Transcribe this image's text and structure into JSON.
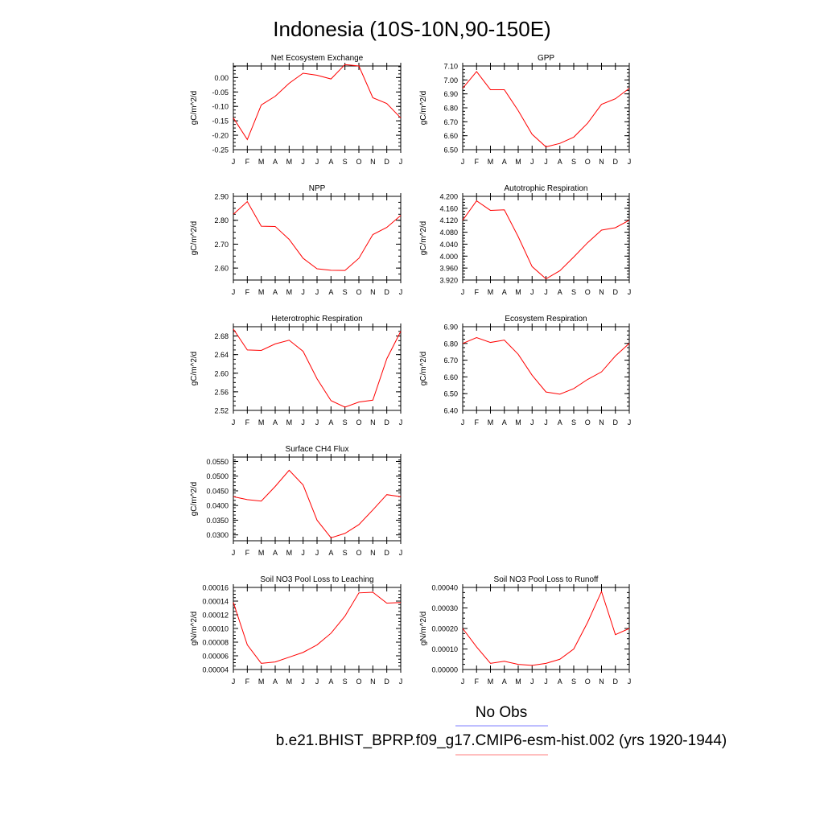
{
  "figure": {
    "title": "Indonesia (10S-10N,90-150E)",
    "legend": [
      {
        "label": "No Obs",
        "color": "#7f7fff"
      },
      {
        "label": "b.e21.BHIST_BPRP.f09_g17.CMIP6-esm-hist.002 (yrs 1920-1944)",
        "color": "#ff7f7f"
      }
    ]
  },
  "chart_data": [
    {
      "type": "line",
      "title": "Net Ecosystem Exchange",
      "ylabel": "gC/m^2/d",
      "categories": [
        "J",
        "F",
        "M",
        "A",
        "M",
        "J",
        "J",
        "A",
        "S",
        "O",
        "N",
        "D",
        "J"
      ],
      "ylim": [
        -0.25,
        0.04
      ],
      "yticks": [
        -0.25,
        -0.2,
        -0.15,
        -0.1,
        -0.05,
        0.0
      ],
      "ytick_labels": [
        "-0.25",
        "-0.20",
        "-0.15",
        "-0.10",
        "-0.05",
        "0.00"
      ],
      "series": [
        {
          "color": "#ff0000",
          "values": [
            -0.14,
            -0.215,
            -0.095,
            -0.065,
            -0.02,
            0.015,
            0.008,
            -0.005,
            0.045,
            0.04,
            -0.07,
            -0.09,
            -0.14
          ]
        }
      ]
    },
    {
      "type": "line",
      "title": "GPP",
      "ylabel": "gC/m^2/d",
      "categories": [
        "J",
        "F",
        "M",
        "A",
        "M",
        "J",
        "J",
        "A",
        "S",
        "O",
        "N",
        "D",
        "J"
      ],
      "ylim": [
        6.5,
        7.1
      ],
      "yticks": [
        6.5,
        6.6,
        6.7,
        6.8,
        6.9,
        7.0,
        7.1
      ],
      "ytick_labels": [
        "6.50",
        "6.60",
        "6.70",
        "6.80",
        "6.90",
        "7.00",
        "7.10"
      ],
      "series": [
        {
          "color": "#ff0000",
          "values": [
            6.94,
            7.06,
            6.93,
            6.93,
            6.78,
            6.61,
            6.52,
            6.545,
            6.59,
            6.69,
            6.825,
            6.865,
            6.94
          ]
        }
      ]
    },
    {
      "type": "line",
      "title": "NPP",
      "ylabel": "gC/m^2/d",
      "categories": [
        "J",
        "F",
        "M",
        "A",
        "M",
        "J",
        "J",
        "A",
        "S",
        "O",
        "N",
        "D",
        "J"
      ],
      "ylim": [
        2.55,
        2.9
      ],
      "yticks": [
        2.6,
        2.7,
        2.8,
        2.9
      ],
      "ytick_labels": [
        "2.60",
        "2.70",
        "2.80",
        "2.90"
      ],
      "series": [
        {
          "color": "#ff0000",
          "values": [
            2.825,
            2.878,
            2.775,
            2.774,
            2.72,
            2.641,
            2.597,
            2.591,
            2.59,
            2.641,
            2.74,
            2.77,
            2.82
          ]
        }
      ]
    },
    {
      "type": "line",
      "title": "Autotrophic Respiration",
      "ylabel": "gC/m^2/d",
      "categories": [
        "J",
        "F",
        "M",
        "A",
        "M",
        "J",
        "J",
        "A",
        "S",
        "O",
        "N",
        "D",
        "J"
      ],
      "ylim": [
        3.92,
        4.2
      ],
      "yticks": [
        3.92,
        3.96,
        4.0,
        4.04,
        4.08,
        4.12,
        4.16,
        4.2
      ],
      "ytick_labels": [
        "3.920",
        "3.960",
        "4.000",
        "4.040",
        "4.080",
        "4.120",
        "4.160",
        "4.200"
      ],
      "series": [
        {
          "color": "#ff0000",
          "values": [
            4.12,
            4.185,
            4.153,
            4.155,
            4.065,
            3.965,
            3.924,
            3.951,
            3.997,
            4.045,
            4.087,
            4.095,
            4.12
          ]
        }
      ]
    },
    {
      "type": "line",
      "title": "Heterotrophic Respiration",
      "ylabel": "gC/m^2/d",
      "categories": [
        "J",
        "F",
        "M",
        "A",
        "M",
        "J",
        "J",
        "A",
        "S",
        "O",
        "N",
        "D",
        "J"
      ],
      "ylim": [
        2.52,
        2.7
      ],
      "yticks": [
        2.52,
        2.56,
        2.6,
        2.64,
        2.68
      ],
      "ytick_labels": [
        "2.52",
        "2.56",
        "2.60",
        "2.64",
        "2.68"
      ],
      "series": [
        {
          "color": "#ff0000",
          "values": [
            2.695,
            2.65,
            2.649,
            2.663,
            2.671,
            2.647,
            2.588,
            2.541,
            2.527,
            2.538,
            2.542,
            2.631,
            2.69
          ]
        }
      ]
    },
    {
      "type": "line",
      "title": "Ecosystem Respiration",
      "ylabel": "gC/m^2/d",
      "categories": [
        "J",
        "F",
        "M",
        "A",
        "M",
        "J",
        "J",
        "A",
        "S",
        "O",
        "N",
        "D",
        "J"
      ],
      "ylim": [
        6.4,
        6.9
      ],
      "yticks": [
        6.4,
        6.5,
        6.6,
        6.7,
        6.8,
        6.9
      ],
      "ytick_labels": [
        "6.40",
        "6.50",
        "6.60",
        "6.70",
        "6.80",
        "6.90"
      ],
      "series": [
        {
          "color": "#ff0000",
          "values": [
            6.8,
            6.835,
            6.806,
            6.82,
            6.735,
            6.61,
            6.51,
            6.497,
            6.53,
            6.585,
            6.63,
            6.725,
            6.8
          ]
        }
      ]
    },
    {
      "type": "line",
      "title": "Surface CH4 Flux",
      "ylabel": "gC/m^2/d",
      "categories": [
        "J",
        "F",
        "M",
        "A",
        "M",
        "J",
        "J",
        "A",
        "S",
        "O",
        "N",
        "D",
        "J"
      ],
      "ylim": [
        0.028,
        0.0565
      ],
      "yticks": [
        0.03,
        0.035,
        0.04,
        0.045,
        0.05,
        0.055
      ],
      "ytick_labels": [
        "0.0300",
        "0.0350",
        "0.0400",
        "0.0450",
        "0.0500",
        "0.0550"
      ],
      "series": [
        {
          "color": "#ff0000",
          "values": [
            0.043,
            0.042,
            0.0415,
            0.0465,
            0.052,
            0.047,
            0.035,
            0.029,
            0.0305,
            0.0335,
            0.0385,
            0.0437,
            0.043
          ]
        }
      ]
    },
    {
      "type": "line",
      "title": "Soil NO3 Pool Loss to Leaching",
      "ylabel": "gN/m^2/d",
      "categories": [
        "J",
        "F",
        "M",
        "A",
        "M",
        "J",
        "J",
        "A",
        "S",
        "O",
        "N",
        "D",
        "J"
      ],
      "ylim": [
        4e-05,
        0.00016
      ],
      "yticks": [
        4e-05,
        6e-05,
        8e-05,
        0.0001,
        0.00012,
        0.00014,
        0.00016
      ],
      "ytick_labels": [
        "0.00004",
        "0.00006",
        "0.00008",
        "0.00010",
        "0.00012",
        "0.00014",
        "0.00016"
      ],
      "series": [
        {
          "color": "#ff0000",
          "values": [
            0.000138,
            7.6e-05,
            4.9e-05,
            5.1e-05,
            5.8e-05,
            6.5e-05,
            7.6e-05,
            9.3e-05,
            0.000118,
            0.000152,
            0.000153,
            0.000137,
            0.000138
          ]
        }
      ]
    },
    {
      "type": "line",
      "title": "Soil NO3 Pool Loss to Runoff",
      "ylabel": "gN/m^2/d",
      "categories": [
        "J",
        "F",
        "M",
        "A",
        "M",
        "J",
        "J",
        "A",
        "S",
        "O",
        "N",
        "D",
        "J"
      ],
      "ylim": [
        0.0,
        0.0004
      ],
      "yticks": [
        0.0,
        0.0001,
        0.0002,
        0.0003,
        0.0004
      ],
      "ytick_labels": [
        "0.00000",
        "0.00010",
        "0.00020",
        "0.00030",
        "0.00040"
      ],
      "series": [
        {
          "color": "#ff0000",
          "values": [
            0.0002,
            0.00011,
            3e-05,
            4e-05,
            2.5e-05,
            2e-05,
            3e-05,
            5e-05,
            0.0001,
            0.00023,
            0.00038,
            0.00017,
            0.0002
          ]
        }
      ]
    }
  ]
}
